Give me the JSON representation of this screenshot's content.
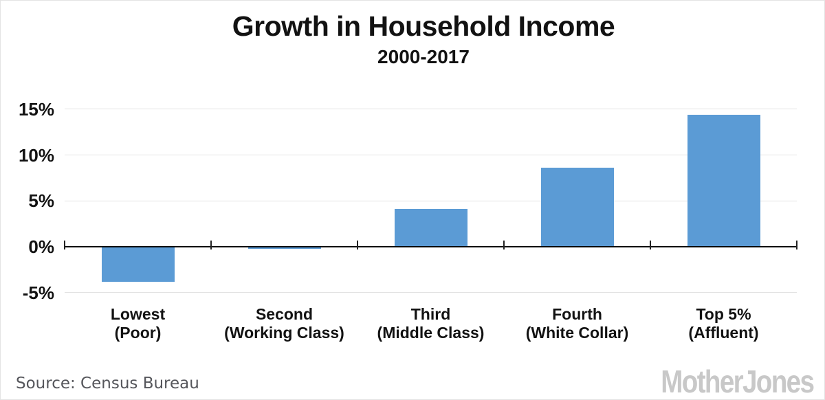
{
  "header": {
    "title": "Growth in Household Income",
    "subtitle": "2000-2017"
  },
  "chart_data": {
    "type": "bar",
    "title": "Growth in Household Income",
    "subtitle": "2000-2017",
    "categories": [
      "Lowest",
      "Second",
      "Third",
      "Fourth",
      "Top 5%"
    ],
    "category_sublabels": [
      "(Poor)",
      "(Working Class)",
      "(Middle Class)",
      "(White Collar)",
      "(Affluent)"
    ],
    "values": [
      -3.8,
      -0.1,
      4.1,
      8.6,
      14.4
    ],
    "xlabel": "",
    "ylabel": "",
    "ylim": [
      -5,
      15
    ],
    "yticks": [
      15,
      10,
      5,
      0,
      -5
    ],
    "ytick_labels": [
      "15%",
      "10%",
      "5%",
      "0%",
      "-5%"
    ],
    "grid": true,
    "legend": "none",
    "bar_color": "#5b9bd5",
    "axis_color": "#000000",
    "gridline_color": "#e2e2e2",
    "tick_color": "#222222"
  },
  "footer": {
    "source_text": "Source:  Census Bureau",
    "logo_text": "MotherJones"
  }
}
